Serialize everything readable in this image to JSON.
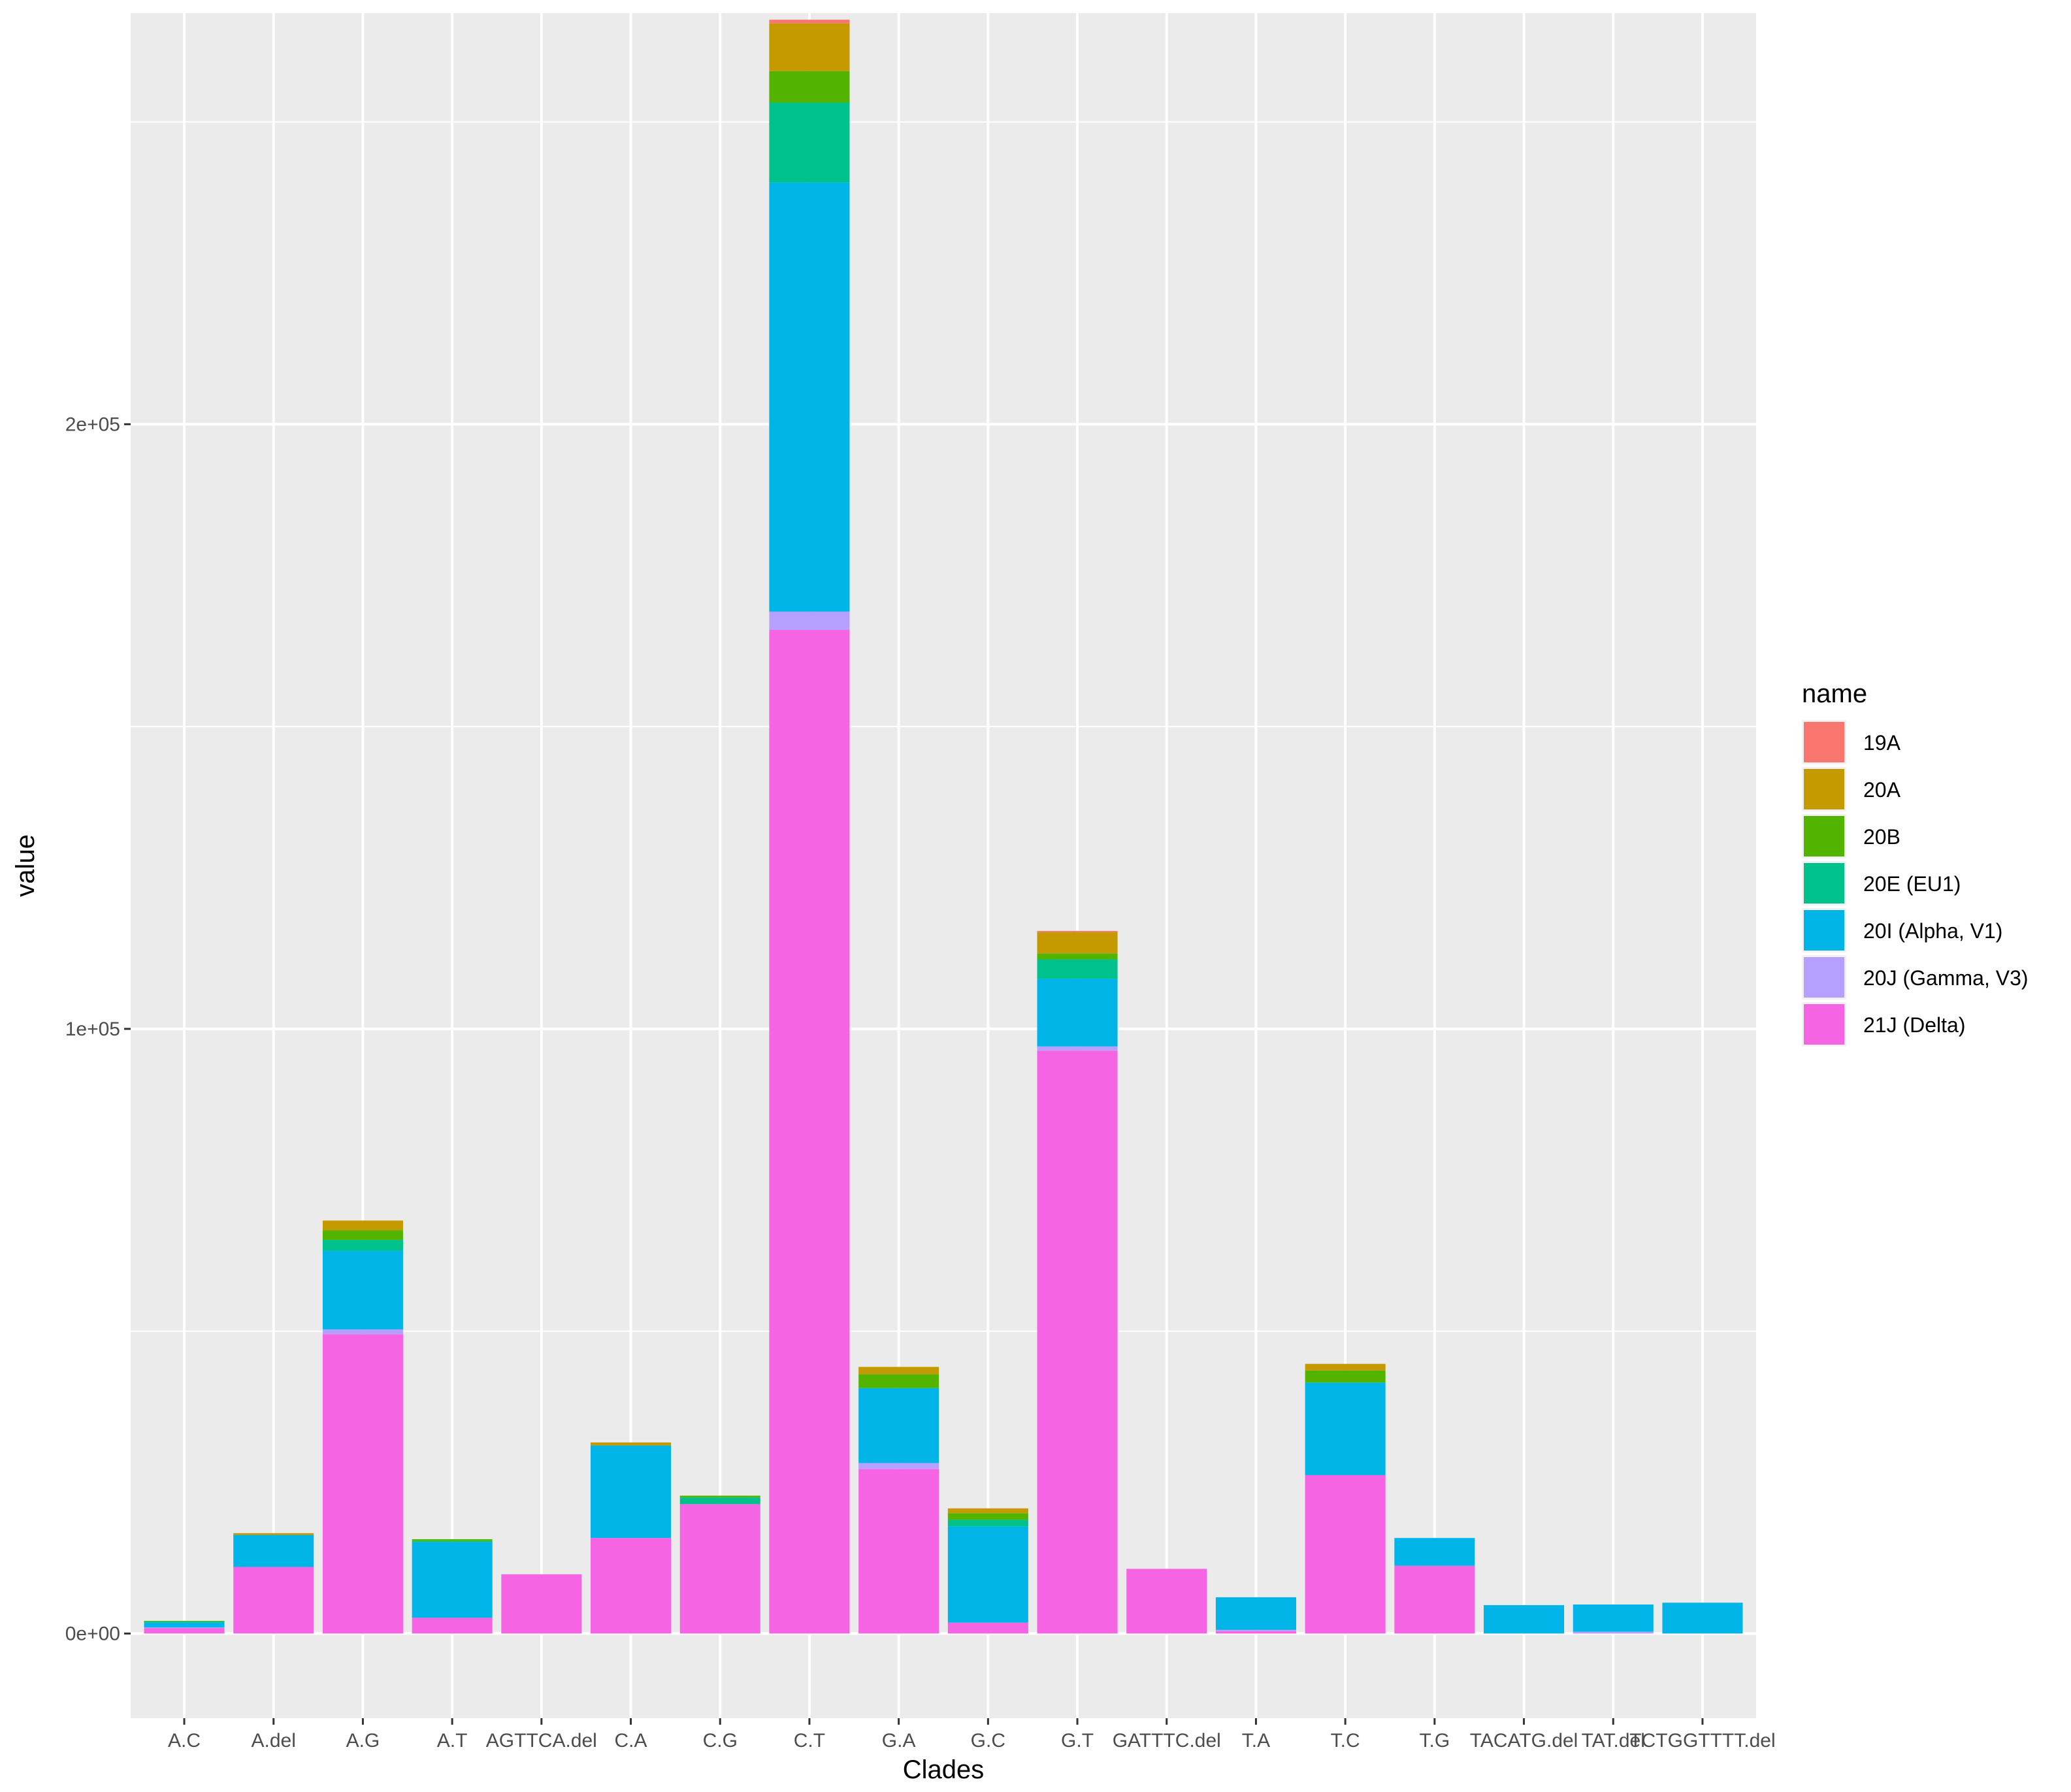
{
  "chart_data": {
    "type": "bar",
    "stacked": true,
    "title": "",
    "xlabel": "Clades",
    "ylabel": "value",
    "ylim": [
      -14000,
      268000
    ],
    "y_ticks": [
      0,
      100000,
      200000
    ],
    "y_tick_labels": [
      "0e+00",
      "1e+05",
      "2e+05"
    ],
    "grid": true,
    "legend_title": "name",
    "legend_position": "right",
    "categories": [
      "A.C",
      "A.del",
      "A.G",
      "A.T",
      "AGTTCA.del",
      "C.A",
      "C.G",
      "C.T",
      "G.A",
      "G.C",
      "G.T",
      "GATTTC.del",
      "T.A",
      "T.C",
      "T.G",
      "TACATG.del",
      "TAT.del",
      "TCTGGTTTT.del"
    ],
    "series": [
      {
        "name": "21J (Delta)",
        "color": "#F564E3",
        "values": [
          900,
          11000,
          49500,
          2600,
          9800,
          15800,
          21400,
          166000,
          27200,
          1800,
          96400,
          10700,
          400,
          26200,
          11200,
          0,
          0,
          0
        ]
      },
      {
        "name": "20J (Gamma, V3)",
        "color": "#B79FFF",
        "values": [
          100,
          0,
          800,
          0,
          0,
          0,
          0,
          3000,
          1000,
          0,
          700,
          0,
          200,
          0,
          0,
          0,
          300,
          0
        ]
      },
      {
        "name": "20I (Alpha, V1)",
        "color": "#00B4E8",
        "values": [
          800,
          5300,
          13000,
          12500,
          0,
          15300,
          0,
          71000,
          12400,
          15900,
          11200,
          0,
          5400,
          15300,
          4600,
          4700,
          4500,
          5100
        ]
      },
      {
        "name": "20E (EU1)",
        "color": "#00C08B",
        "values": [
          200,
          0,
          1800,
          200,
          0,
          0,
          1100,
          13200,
          0,
          1100,
          3200,
          0,
          0,
          0,
          0,
          0,
          0,
          0
        ]
      },
      {
        "name": "20B",
        "color": "#53B400",
        "values": [
          100,
          0,
          1600,
          300,
          0,
          0,
          300,
          5200,
          2300,
          1100,
          1000,
          0,
          0,
          2000,
          0,
          0,
          0,
          0
        ]
      },
      {
        "name": "20A",
        "color": "#C49A00",
        "values": [
          0,
          300,
          1600,
          0,
          0,
          500,
          0,
          7900,
          1200,
          800,
          3500,
          0,
          0,
          1100,
          0,
          0,
          0,
          0
        ]
      },
      {
        "name": "19A",
        "color": "#F8766D",
        "values": [
          0,
          0,
          0,
          0,
          0,
          0,
          0,
          600,
          0,
          0,
          200,
          0,
          0,
          0,
          0,
          0,
          0,
          0
        ]
      }
    ],
    "legend_order": [
      "19A",
      "20A",
      "20B",
      "20E (EU1)",
      "20I (Alpha, V1)",
      "20J (Gamma, V3)",
      "21J (Delta)"
    ],
    "colors": {
      "panel_background": "#EBEBEB",
      "grid_line": "#FFFFFF",
      "tick_text": "#4d4d4d",
      "tick_mark": "#333333"
    }
  }
}
